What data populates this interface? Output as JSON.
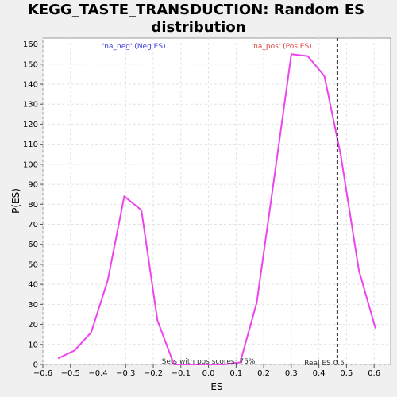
{
  "chart_data": {
    "type": "line",
    "title": "KEGG_TASTE_TRANSDUCTION: Random ES distribution",
    "title_lines": [
      "KEGG_TASTE_TRANSDUCTION: Random ES",
      "distribution"
    ],
    "xlabel": "ES",
    "ylabel": "P(ES)",
    "xlim": [
      -0.6,
      0.66
    ],
    "ylim": [
      0,
      163
    ],
    "xticks": [
      -0.6,
      -0.5,
      -0.4,
      -0.3,
      -0.2,
      -0.1,
      0.0,
      0.1,
      0.2,
      0.3,
      0.4,
      0.5,
      0.6
    ],
    "xtick_labels": [
      "−0.6",
      "−0.5",
      "−0.4",
      "−0.3",
      "−0.2",
      "−0.1",
      "0.0",
      "0.1",
      "0.2",
      "0.3",
      "0.4",
      "0.5",
      "0.6"
    ],
    "yticks": [
      0,
      10,
      20,
      30,
      40,
      50,
      60,
      70,
      80,
      90,
      100,
      110,
      120,
      130,
      140,
      150,
      160
    ],
    "grid": true,
    "series": [
      {
        "color": "#ee44ee",
        "x": [
          -0.545,
          -0.485,
          -0.425,
          -0.365,
          -0.305,
          -0.243,
          -0.185,
          -0.125,
          -0.065,
          -0.005,
          0.055,
          0.115,
          0.175,
          0.24,
          0.3,
          0.36,
          0.42,
          0.48,
          0.545,
          0.605
        ],
        "y": [
          3,
          7,
          16,
          42,
          84,
          77,
          22,
          0,
          0,
          0,
          0,
          1,
          31,
          95,
          155,
          154,
          144,
          104,
          47,
          18
        ]
      }
    ],
    "real_es": {
      "x": 0.467,
      "label": "Real ES 0.5"
    },
    "annotations": {
      "neg": {
        "text": "'na_neg' (Neg ES)",
        "color": "#4040dd"
      },
      "pos": {
        "text": "'na_pos' (Pos ES)",
        "color": "#dd4444"
      },
      "sets_text": "Sets with pos scores: 75%"
    }
  }
}
